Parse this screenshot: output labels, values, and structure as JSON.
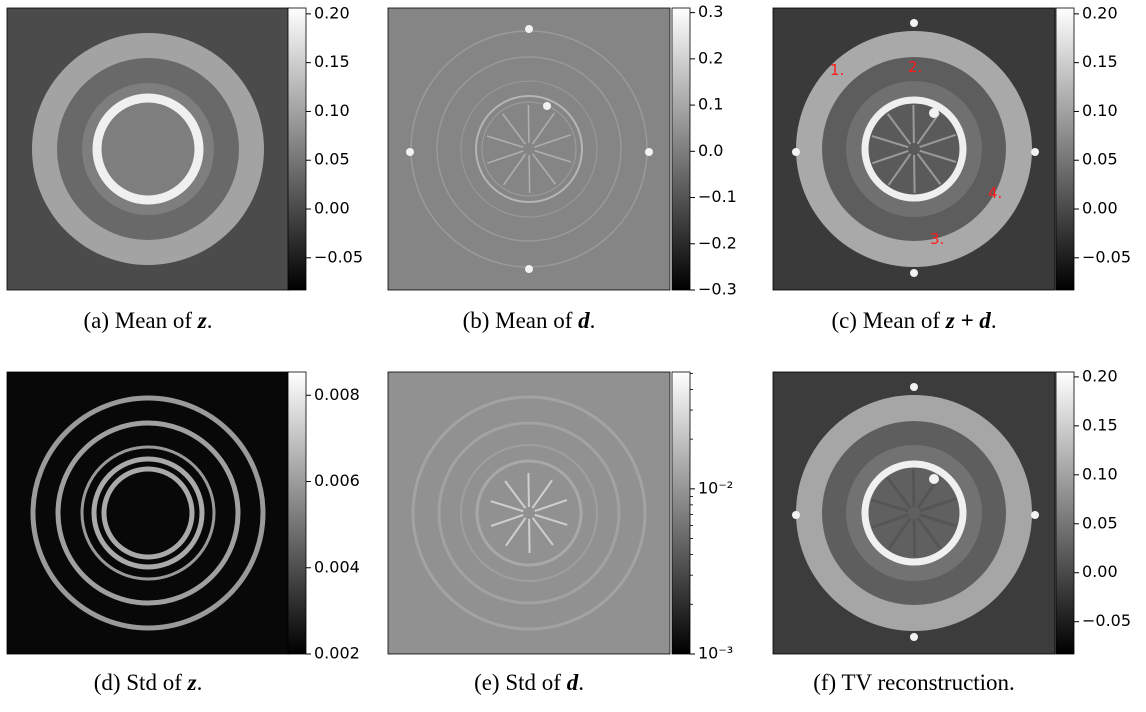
{
  "panels": [
    {
      "caption": [
        {
          "text": "(a) Mean of "
        },
        {
          "math": "z"
        },
        {
          "text": "."
        }
      ],
      "colorbar": {
        "scale": "linear",
        "lim": [
          -0.083,
          0.206
        ],
        "ticks": [
          {
            "value": 0.2,
            "label": "0.20"
          },
          {
            "value": 0.15,
            "label": "0.15"
          },
          {
            "value": 0.1,
            "label": "0.10"
          },
          {
            "value": 0.05,
            "label": "0.05"
          },
          {
            "value": 0,
            "label": "0.00"
          },
          {
            "value": -0.05,
            "label": "−0.05"
          }
        ]
      }
    },
    {
      "caption": [
        {
          "text": "(b) Mean of "
        },
        {
          "math": "d"
        },
        {
          "text": "."
        }
      ],
      "colorbar": {
        "scale": "linear",
        "lim": [
          -0.3,
          0.31
        ],
        "ticks": [
          0.3,
          0.2,
          0.1,
          {
            "value": 0,
            "label": "0.0"
          },
          {
            "value": -0.1,
            "label": "−0.1"
          },
          {
            "value": -0.2,
            "label": "−0.2"
          },
          {
            "value": -0.3,
            "label": "−0.3"
          }
        ]
      }
    },
    {
      "caption": [
        {
          "text": "(c) Mean of "
        },
        {
          "math": "z + d"
        },
        {
          "text": "."
        }
      ],
      "annotations": [
        "1.",
        "2.",
        "3.",
        "4."
      ],
      "colorbar": {
        "scale": "linear",
        "lim": [
          -0.083,
          0.206
        ],
        "ticks": [
          {
            "value": 0.2,
            "label": "0.20"
          },
          {
            "value": 0.15,
            "label": "0.15"
          },
          {
            "value": 0.1,
            "label": "0.10"
          },
          {
            "value": 0.05,
            "label": "0.05"
          },
          {
            "value": 0,
            "label": "0.00"
          },
          {
            "value": -0.05,
            "label": "−0.05"
          }
        ]
      }
    },
    {
      "caption": [
        {
          "text": "(d) Std of "
        },
        {
          "math": "z"
        },
        {
          "text": "."
        }
      ],
      "colorbar": {
        "scale": "linear",
        "lim": [
          0.002,
          0.00854
        ],
        "ticks": [
          0.008,
          0.006,
          0.004,
          0.002
        ]
      }
    },
    {
      "caption": [
        {
          "text": "(e) Std of "
        },
        {
          "math": "d"
        },
        {
          "text": "."
        }
      ],
      "colorbar": {
        "scale": "log",
        "lim": [
          0.001,
          0.051
        ],
        "ticks": [
          {
            "value": 0.01,
            "label": "10⁻²"
          },
          {
            "value": 0.001,
            "label": "10⁻³"
          }
        ],
        "minor_ticks": [
          0.002,
          0.003,
          0.004,
          0.005,
          0.006,
          0.007,
          0.008,
          0.009,
          0.02,
          0.03,
          0.04,
          0.05
        ]
      }
    },
    {
      "caption": [
        {
          "text": "(f) TV reconstruction."
        }
      ],
      "colorbar": {
        "scale": "linear",
        "lim": [
          -0.083,
          0.205
        ],
        "ticks": [
          {
            "value": 0.2,
            "label": "0.20"
          },
          {
            "value": 0.15,
            "label": "0.15"
          },
          {
            "value": 0.1,
            "label": "0.10"
          },
          {
            "value": 0.05,
            "label": "0.05"
          },
          {
            "value": 0,
            "label": "0.00"
          },
          {
            "value": -0.05,
            "label": "−0.05"
          }
        ]
      }
    }
  ]
}
